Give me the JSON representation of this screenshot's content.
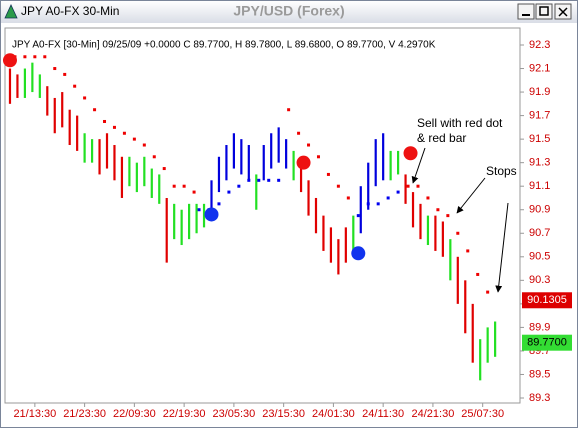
{
  "window_title": "JPY A0-FX 30-Min",
  "chart_data": {
    "type": "bar",
    "title": "JPY/USD (Forex)",
    "subtitle": "JPY  A0-FX [30-Min] 09/25/09 +0.0000 C 89.7700, H 89.7800, L 89.6800, O 89.7700, V 4.2970K",
    "xlim": [
      -2,
      205
    ],
    "ylim": [
      89.3,
      92.3
    ],
    "grid": false,
    "yticks": [
      89.3,
      89.5,
      89.7,
      89.9,
      90.1,
      90.3,
      90.5,
      90.7,
      90.9,
      91.1,
      91.3,
      91.5,
      91.7,
      91.9,
      92.1,
      92.3
    ],
    "xticks": [
      {
        "value": 10,
        "label": "21/13:30"
      },
      {
        "value": 30,
        "label": "21/23:30"
      },
      {
        "value": 50,
        "label": "22/09:30"
      },
      {
        "value": 70,
        "label": "22/19:30"
      },
      {
        "value": 90,
        "label": "23/05:30"
      },
      {
        "value": 110,
        "label": "23/15:30"
      },
      {
        "value": 130,
        "label": "24/01:30"
      },
      {
        "value": 150,
        "label": "24/11:30"
      },
      {
        "value": 170,
        "label": "24/21:30"
      },
      {
        "value": 190,
        "label": "25/07:30"
      }
    ],
    "bars": [
      {
        "color": "#e00000",
        "x": [
          0,
          3,
          15,
          18,
          21,
          24,
          27,
          36,
          39,
          42,
          45,
          63,
          117,
          120,
          123,
          126,
          129,
          132,
          135,
          159,
          162,
          165,
          171,
          174,
          180,
          183,
          186
        ],
        "high": [
          92.1,
          92.05,
          91.95,
          91.85,
          91.9,
          91.75,
          91.7,
          91.5,
          91.55,
          91.45,
          91.35,
          91.0,
          91.35,
          91.15,
          91.0,
          90.85,
          90.75,
          90.65,
          90.75,
          91.2,
          91.05,
          90.95,
          90.85,
          90.8,
          90.5,
          90.3,
          90.1
        ],
        "low": [
          91.8,
          91.85,
          91.7,
          91.55,
          91.6,
          91.45,
          91.4,
          91.2,
          91.25,
          91.15,
          91.0,
          90.45,
          91.05,
          90.85,
          90.7,
          90.55,
          90.45,
          90.35,
          90.45,
          90.95,
          90.75,
          90.65,
          90.55,
          90.5,
          90.1,
          89.85,
          89.6
        ]
      },
      {
        "color": "#22e022",
        "x": [
          6,
          9,
          12,
          30,
          33,
          48,
          51,
          54,
          57,
          60,
          66,
          69,
          72,
          75,
          78,
          99,
          114,
          138,
          153,
          156,
          168,
          177,
          189,
          192,
          195
        ],
        "high": [
          92.1,
          92.15,
          92.05,
          91.55,
          91.5,
          91.35,
          91.3,
          91.35,
          91.25,
          91.2,
          90.95,
          90.9,
          90.95,
          90.95,
          90.95,
          91.2,
          91.4,
          90.85,
          91.4,
          91.4,
          90.85,
          90.65,
          89.8,
          89.9,
          89.95
        ],
        "low": [
          91.85,
          91.9,
          91.85,
          91.3,
          91.3,
          91.1,
          91.05,
          91.1,
          91.0,
          90.95,
          90.65,
          90.6,
          90.65,
          90.7,
          90.75,
          90.9,
          91.15,
          90.55,
          91.15,
          91.2,
          90.6,
          90.3,
          89.45,
          89.6,
          89.65
        ]
      },
      {
        "color": "#0000dd",
        "x": [
          81,
          84,
          87,
          90,
          93,
          96,
          102,
          105,
          108,
          111,
          141,
          144,
          147,
          150
        ],
        "high": [
          91.15,
          91.35,
          91.45,
          91.55,
          91.5,
          91.45,
          91.45,
          91.55,
          91.6,
          91.5,
          91.1,
          91.3,
          91.5,
          91.55
        ],
        "low": [
          90.85,
          91.05,
          91.15,
          91.25,
          91.2,
          91.15,
          91.15,
          91.25,
          91.3,
          91.25,
          90.7,
          90.9,
          91.1,
          91.15
        ]
      }
    ],
    "stops": [
      {
        "color": "#ee0000",
        "x": [
          2,
          6,
          10,
          14,
          18,
          22,
          26,
          30,
          34,
          38,
          42,
          46,
          50,
          54,
          58,
          62,
          66,
          70,
          74,
          112,
          116,
          120,
          124,
          128,
          132,
          136,
          160,
          164,
          168,
          172,
          176,
          180,
          184,
          188,
          192
        ],
        "values": [
          92.2,
          92.2,
          92.2,
          92.2,
          92.1,
          92.05,
          91.95,
          91.85,
          91.75,
          91.65,
          91.6,
          91.55,
          91.5,
          91.45,
          91.35,
          91.25,
          91.1,
          91.1,
          91.05,
          91.75,
          91.55,
          91.45,
          91.35,
          91.2,
          91.1,
          91.0,
          91.1,
          91.1,
          91.0,
          90.9,
          90.85,
          90.7,
          90.55,
          90.35,
          90.2
        ]
      },
      {
        "color": "#0000ee",
        "x": [
          76,
          80,
          84,
          88,
          92,
          96,
          100,
          104,
          108,
          140,
          144,
          148,
          152,
          156
        ],
        "values": [
          90.9,
          90.9,
          90.95,
          91.05,
          91.1,
          91.15,
          91.15,
          91.15,
          91.15,
          90.85,
          90.95,
          90.95,
          91.0,
          91.05
        ]
      }
    ],
    "signals": {
      "x": [
        0,
        81,
        118,
        140,
        161
      ],
      "values": [
        92.17,
        90.86,
        91.3,
        90.53,
        91.38
      ],
      "colors": [
        "#ee1111",
        "#1133ee",
        "#ee1111",
        "#1133ee",
        "#ee1111"
      ]
    },
    "price_labels": [
      {
        "value": 90.1305,
        "label": "90.1305",
        "color": "#dd0000",
        "text_color": "#ffffff"
      },
      {
        "value": 89.77,
        "label": "89.7700",
        "color": "#33dd33",
        "text_color": "#000000"
      }
    ],
    "annotations": [
      {
        "lines": [
          "Sell with red dot",
          "& red bar"
        ]
      },
      {
        "lines": [
          "Stops"
        ]
      }
    ]
  }
}
